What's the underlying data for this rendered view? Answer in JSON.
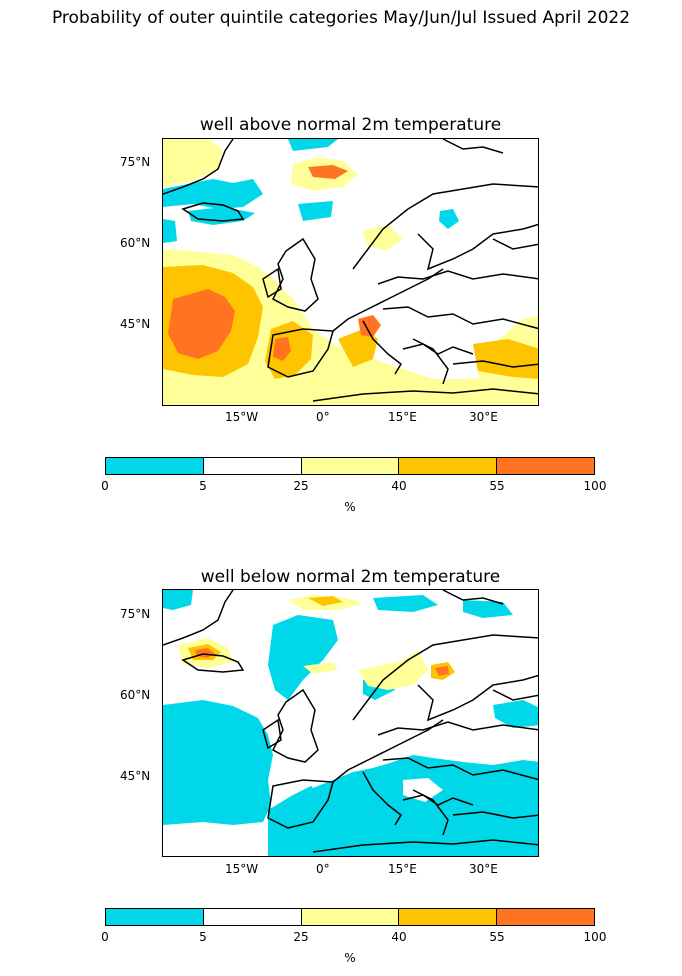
{
  "title": "Probability of outer quintile categories May/Jun/Jul Issued April 2022",
  "colors": {
    "cyan": "#00d8ea",
    "white": "#ffffff",
    "light_yellow": "#ffff99",
    "orange_yellow": "#ffc400",
    "orange": "#ff7321",
    "border": "#000000"
  },
  "panels": [
    {
      "title": "well above normal 2m temperature",
      "lat_ticks": [
        "75°N",
        "60°N",
        "45°N"
      ],
      "lon_ticks": [
        "15°W",
        "0°",
        "15°E",
        "30°E"
      ],
      "colorbar": {
        "ticks": [
          "0",
          "5",
          "25",
          "40",
          "55",
          "100"
        ],
        "unit": "%",
        "segments": [
          "#00d8ea",
          "#ffffff",
          "#ffff99",
          "#ffc400",
          "#ff7321"
        ]
      }
    },
    {
      "title": "well below normal 2m temperature",
      "lat_ticks": [
        "75°N",
        "60°N",
        "45°N"
      ],
      "lon_ticks": [
        "15°W",
        "0°",
        "15°E",
        "30°E"
      ],
      "colorbar": {
        "ticks": [
          "0",
          "5",
          "25",
          "40",
          "55",
          "100"
        ],
        "unit": "%",
        "segments": [
          "#00d8ea",
          "#ffffff",
          "#ffff99",
          "#ffc400",
          "#ff7321"
        ]
      }
    }
  ]
}
